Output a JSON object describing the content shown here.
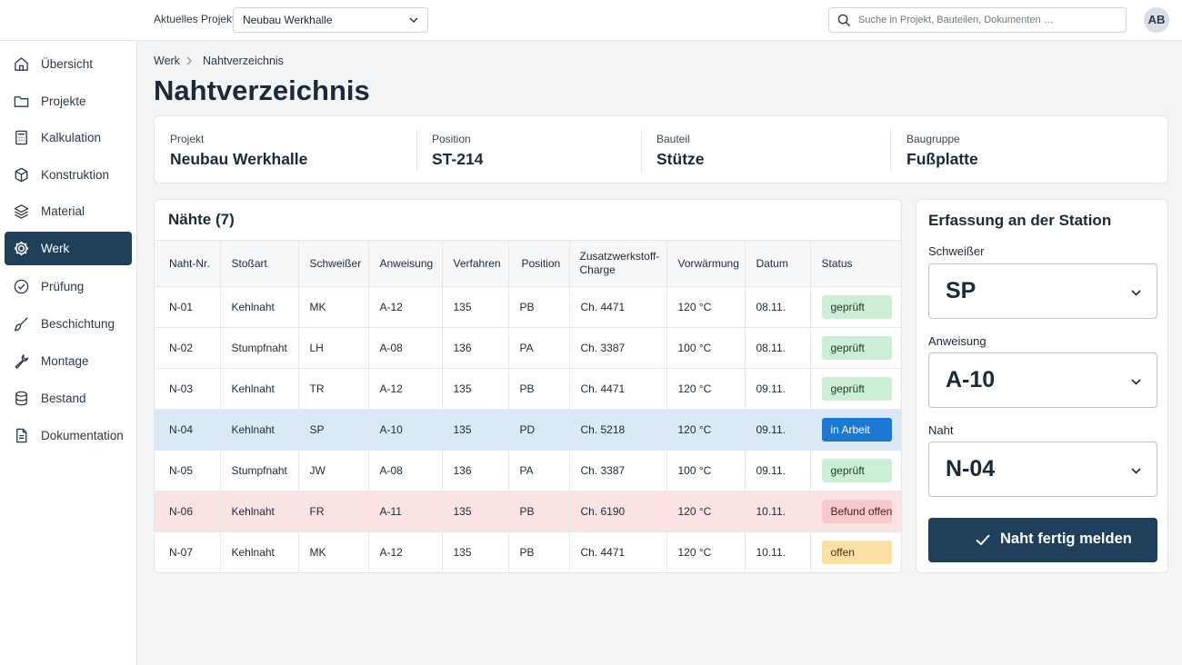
{
  "header": {
    "project_label": "Aktuelles Projekt",
    "project_value": "Neubau Werkhalle",
    "search_placeholder": "Suche in Projekt, Bauteilen, Dokumenten …",
    "avatar_initials": "AB"
  },
  "sidebar": {
    "items": [
      {
        "label": "Übersicht",
        "icon": "home-icon"
      },
      {
        "label": "Projekte",
        "icon": "folder-icon"
      },
      {
        "label": "Kalkulation",
        "icon": "calculator-icon"
      },
      {
        "label": "Konstruktion",
        "icon": "cube-icon"
      },
      {
        "label": "Material",
        "icon": "layers-icon"
      },
      {
        "label": "Werk",
        "icon": "gear-icon",
        "active": true
      },
      {
        "label": "Prüfung",
        "icon": "check-circle-icon"
      },
      {
        "label": "Beschichtung",
        "icon": "brush-icon"
      },
      {
        "label": "Montage",
        "icon": "wrench-icon"
      },
      {
        "label": "Bestand",
        "icon": "database-icon"
      },
      {
        "label": "Dokumentation",
        "icon": "document-icon"
      }
    ]
  },
  "breadcrumb": {
    "parent": "Werk",
    "current": "Nahtverzeichnis"
  },
  "page_title": "Nahtverzeichnis",
  "info": {
    "projekt": {
      "label": "Projekt",
      "value": "Neubau Werkhalle"
    },
    "position": {
      "label": "Position",
      "value": "ST-214"
    },
    "bauteil": {
      "label": "Bauteil",
      "value": "Stütze"
    },
    "baugruppe": {
      "label": "Baugruppe",
      "value": "Fußplatte"
    }
  },
  "table": {
    "title": "Nähte (7)",
    "headers": [
      "Naht-Nr.",
      "Stoßart",
      "Schweißer",
      "Anweisung",
      "Verfahren",
      "Position",
      "Zusatzwerkstoff-\nCharge",
      "Vorwärmung",
      "Datum",
      "Status"
    ],
    "rows": [
      {
        "naht": "N-01",
        "stoss": "Kehlnaht",
        "schweisser": "MK",
        "anweisung": "A-12",
        "verfahren": "135",
        "position": "PB",
        "charge": "Ch. 4471",
        "vorwaermung": "120 °C",
        "datum": "08.11.",
        "status": "geprüft",
        "state": "ok"
      },
      {
        "naht": "N-02",
        "stoss": "Stumpfnaht",
        "schweisser": "LH",
        "anweisung": "A-08",
        "verfahren": "136",
        "position": "PA",
        "charge": "Ch. 3387",
        "vorwaermung": "100 °C",
        "datum": "08.11.",
        "status": "geprüft",
        "state": "ok"
      },
      {
        "naht": "N-03",
        "stoss": "Kehlnaht",
        "schweisser": "TR",
        "anweisung": "A-12",
        "verfahren": "135",
        "position": "PB",
        "charge": "Ch. 4471",
        "vorwaermung": "120 °C",
        "datum": "09.11.",
        "status": "geprüft",
        "state": "ok"
      },
      {
        "naht": "N-04",
        "stoss": "Kehlnaht",
        "schweisser": "SP",
        "anweisung": "A-10",
        "verfahren": "135",
        "position": "PD",
        "charge": "Ch. 5218",
        "vorwaermung": "120 °C",
        "datum": "09.11.",
        "status": "in Arbeit",
        "state": "work"
      },
      {
        "naht": "N-05",
        "stoss": "Stumpfnaht",
        "schweisser": "JW",
        "anweisung": "A-08",
        "verfahren": "136",
        "position": "PA",
        "charge": "Ch. 3387",
        "vorwaermung": "100 °C",
        "datum": "09.11.",
        "status": "geprüft",
        "state": "ok"
      },
      {
        "naht": "N-06",
        "stoss": "Kehlnaht",
        "schweisser": "FR",
        "anweisung": "A-11",
        "verfahren": "135",
        "position": "PB",
        "charge": "Ch. 6190",
        "vorwaermung": "120 °C",
        "datum": "10.11.",
        "status": "Befund offen",
        "state": "err"
      },
      {
        "naht": "N-07",
        "stoss": "Kehlnaht",
        "schweisser": "MK",
        "anweisung": "A-12",
        "verfahren": "135",
        "position": "PB",
        "charge": "Ch. 4471",
        "vorwaermung": "120 °C",
        "datum": "10.11.",
        "status": "offen",
        "state": "open"
      }
    ]
  },
  "station": {
    "title": "Erfassung an der Station",
    "schweisser_label": "Schweißer",
    "schweisser_value": "SP",
    "anweisung_label": "Anweisung",
    "anweisung_value": "A-10",
    "naht_label": "Naht",
    "naht_value": "N-04",
    "button_label": "Naht fertig melden"
  },
  "colors": {
    "primary": "#1f3f5b",
    "status_ok": "#cdeed6",
    "status_work": "#1e78d2",
    "status_err": "#f8c9cc",
    "status_open": "#fbe0a6",
    "row_progress": "#dbe9f6",
    "row_error": "#fbe3e4"
  }
}
